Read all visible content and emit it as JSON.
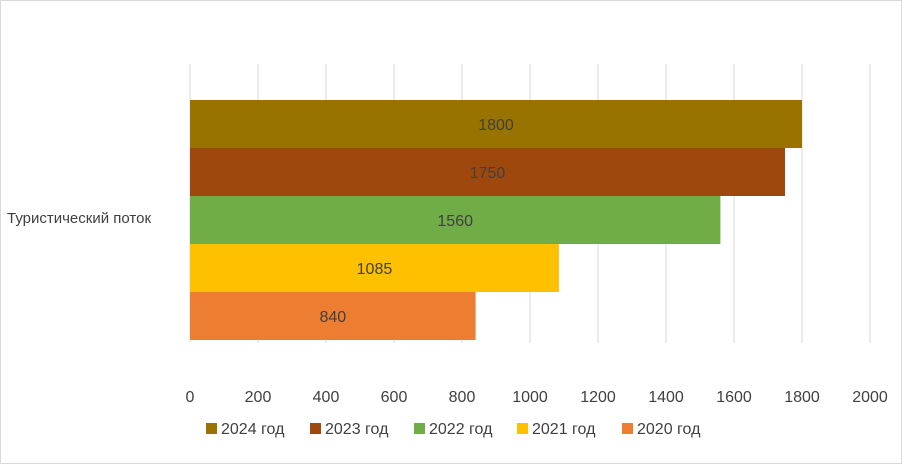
{
  "chart_data": {
    "type": "bar",
    "orientation": "horizontal",
    "categories": [
      "Туристический поток"
    ],
    "series": [
      {
        "name": "2024 год",
        "values": [
          1800
        ],
        "color": "#997300"
      },
      {
        "name": "2023 год",
        "values": [
          1750
        ],
        "color": "#9E480E"
      },
      {
        "name": "2022 год",
        "values": [
          1560
        ],
        "color": "#70AD47"
      },
      {
        "name": "2021 год",
        "values": [
          1085
        ],
        "color": "#FFC000"
      },
      {
        "name": "2020 год",
        "values": [
          840
        ],
        "color": "#ED7D31"
      }
    ],
    "xlim": [
      0,
      2000
    ],
    "ticks": [
      0,
      200,
      400,
      600,
      800,
      1000,
      1200,
      1400,
      1600,
      1800,
      2000
    ],
    "tick_labels": [
      "0",
      "200",
      "400",
      "600",
      "800",
      "1000",
      "1200",
      "1400",
      "1600",
      "1800",
      "2000"
    ],
    "data_labels": [
      "1800",
      "1750",
      "1560",
      "1085",
      "840"
    ],
    "grid": true,
    "legend_position": "bottom",
    "gridline_color": "#d9d9d9",
    "title": "",
    "xlabel": "",
    "ylabel": ""
  }
}
